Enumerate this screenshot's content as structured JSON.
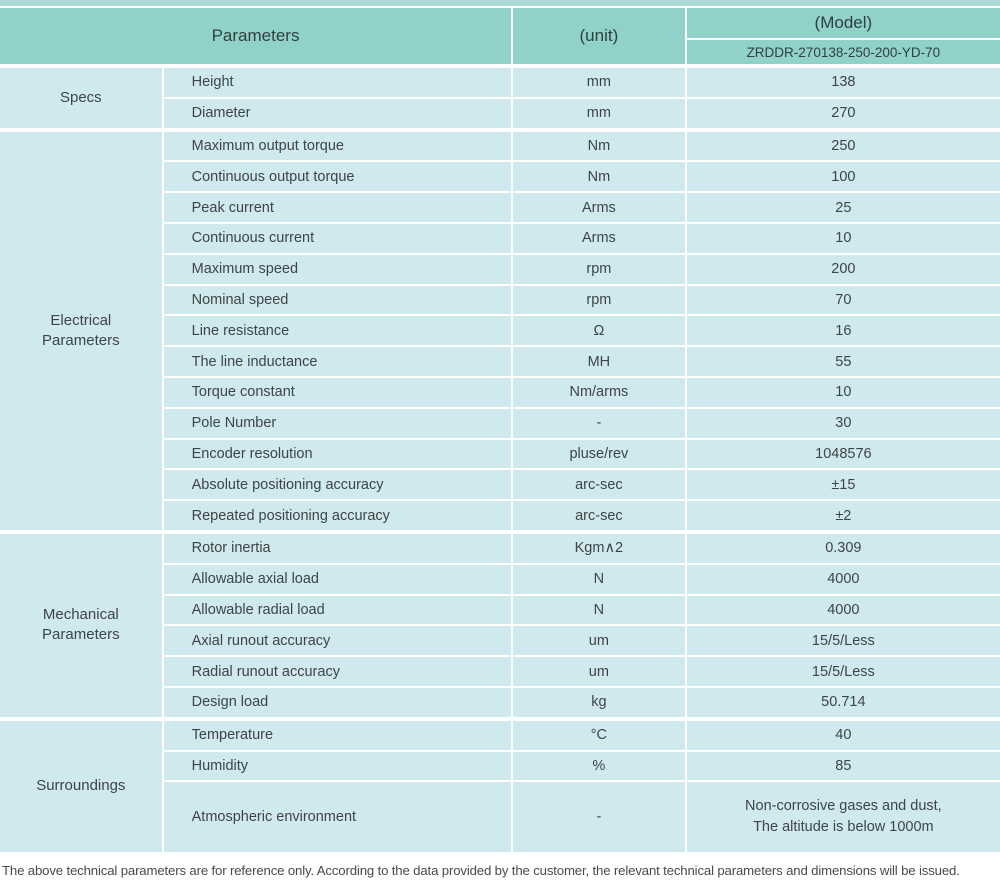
{
  "colors": {
    "header_bg": "#90d1ca",
    "row_bg": "#cfe9ee",
    "top_strip": "#a9d9d5",
    "separator": "#ffffff",
    "text": "#3e4447"
  },
  "header": {
    "parameters_label": "Parameters",
    "unit_label": "(unit)",
    "model_label": "(Model)",
    "model_value": "ZRDDR-270138-250-200-YD-70"
  },
  "sections": [
    {
      "group": [
        "Specs"
      ],
      "rows": [
        [
          "Height",
          "mm",
          "138"
        ],
        [
          "Diameter",
          "mm",
          "270"
        ]
      ]
    },
    {
      "group": [
        "Electrical",
        "Parameters"
      ],
      "rows": [
        [
          "Maximum output torque",
          "Nm",
          "250"
        ],
        [
          "Continuous output torque",
          "Nm",
          "100"
        ],
        [
          "Peak current",
          "Arms",
          "25"
        ],
        [
          "Continuous current",
          "Arms",
          "10"
        ],
        [
          "Maximum speed",
          "rpm",
          "200"
        ],
        [
          "Nominal speed",
          "rpm",
          "70"
        ],
        [
          "Line resistance",
          "Ω",
          "16"
        ],
        [
          "The line inductance",
          "MH",
          "55"
        ],
        [
          "Torque constant",
          "Nm/arms",
          "10"
        ],
        [
          "Pole Number",
          "-",
          "30"
        ],
        [
          "Encoder resolution",
          "pluse/rev",
          "1048576"
        ],
        [
          "Absolute positioning accuracy",
          "arc-sec",
          "±15"
        ],
        [
          "Repeated positioning accuracy",
          "arc-sec",
          "±2"
        ]
      ]
    },
    {
      "group": [
        "Mechanical",
        "Parameters"
      ],
      "rows": [
        [
          "Rotor inertia",
          "Kgm∧2",
          "0.309"
        ],
        [
          "Allowable axial load",
          "N",
          "4000"
        ],
        [
          "Allowable radial load",
          "N",
          "4000"
        ],
        [
          "Axial runout accuracy",
          "um",
          "15/5/Less"
        ],
        [
          "Radial runout accuracy",
          "um",
          "15/5/Less"
        ],
        [
          "Design load",
          "kg",
          "50.714"
        ]
      ]
    },
    {
      "group": [
        "Surroundings"
      ],
      "rows": [
        [
          "Temperature",
          "°C",
          "40"
        ],
        [
          "Humidity",
          "%",
          "85"
        ],
        [
          "Atmospheric environment",
          "-",
          "Non-corrosive gases and dust,",
          "The altitude is below 1000m"
        ]
      ]
    }
  ],
  "footnote": "The above technical parameters are for reference only. According to the data provided by the customer, the relevant technical parameters and dimensions will be issued."
}
